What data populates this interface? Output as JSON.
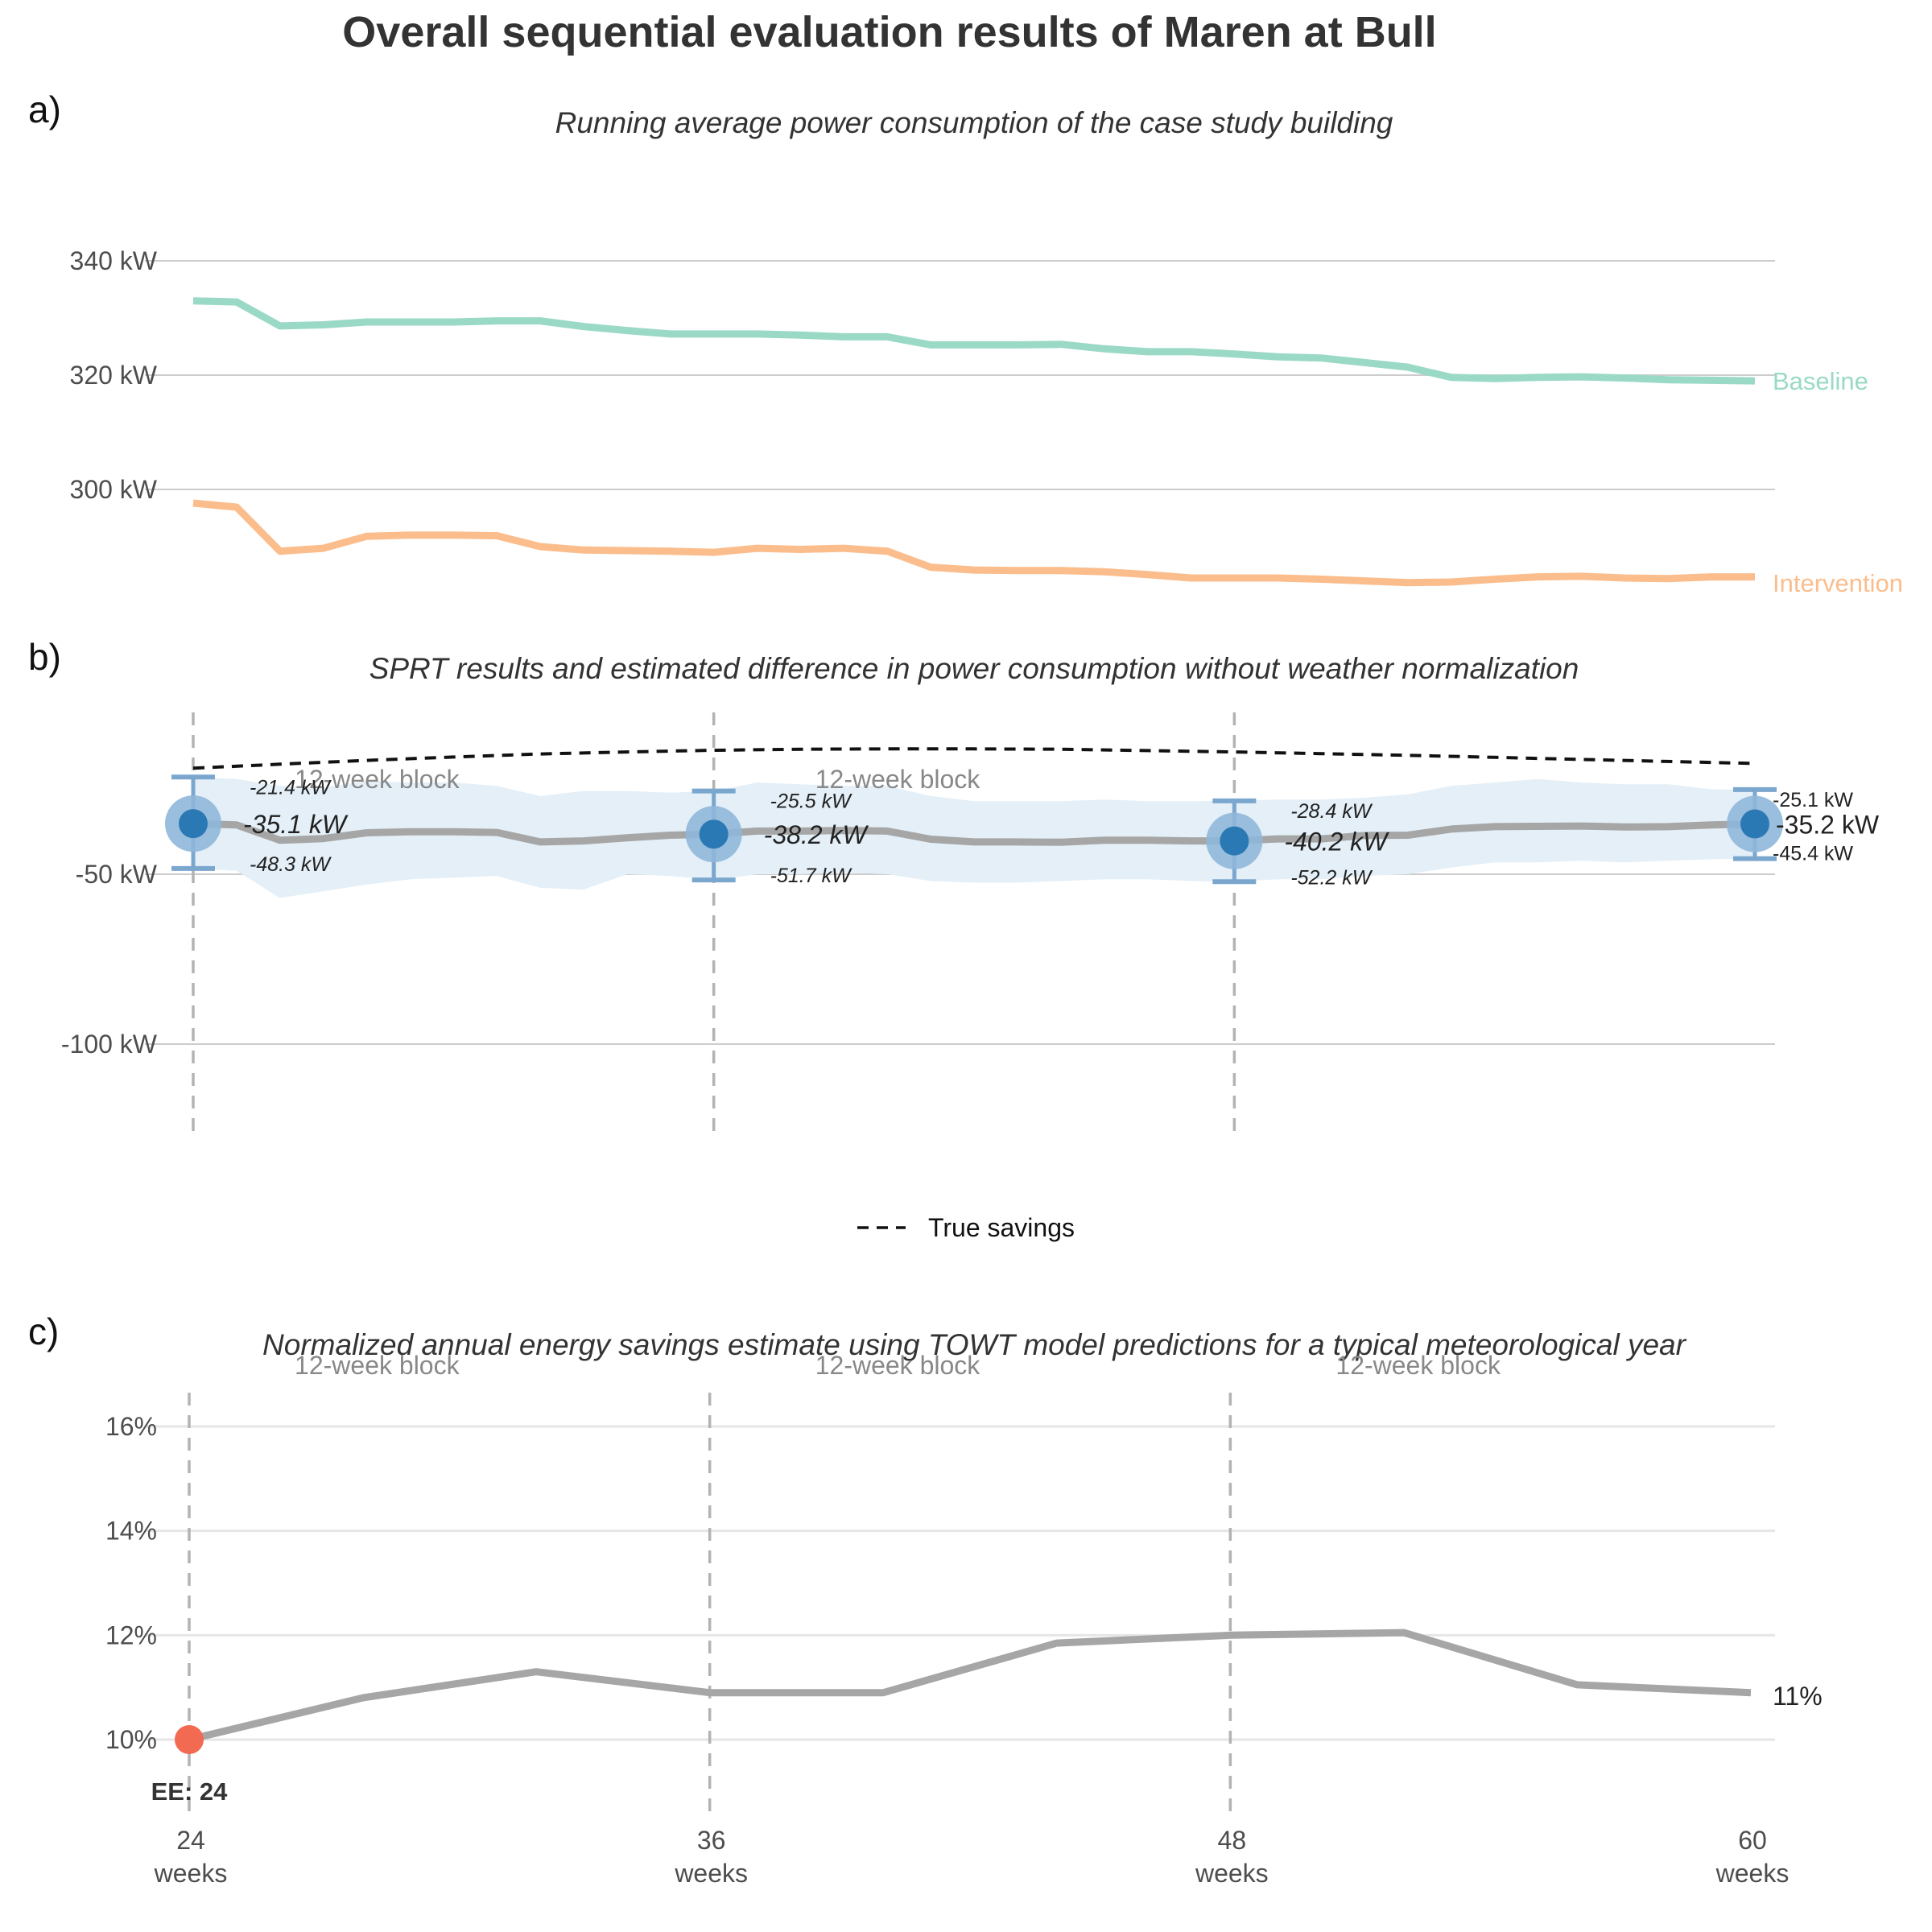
{
  "title": "Overall sequential evaluation results of Maren at Bull",
  "colors": {
    "baseline": "#9ad9c6",
    "intervention": "#fbbd8c",
    "estimate_line": "#a6a6a6",
    "ribbon": "#e4eff7",
    "point": "#2b79b4",
    "point_halo": "#8fb7d9",
    "errorbar": "#7ba7cf",
    "early_end": "#f26a52"
  },
  "x_axis": {
    "ticks": [
      {
        "value": "24",
        "unit": "weeks"
      },
      {
        "value": "36",
        "unit": "weeks"
      },
      {
        "value": "48",
        "unit": "weeks"
      },
      {
        "value": "60",
        "unit": "weeks"
      }
    ]
  },
  "chart_data": [
    {
      "panel": "a)",
      "type": "line",
      "subtitle": "Running average power consumption of the case study building",
      "x_range": [
        24,
        60
      ],
      "ylim": [
        282,
        350
      ],
      "yticks": [
        "300 kW",
        "320 kW",
        "340 kW"
      ],
      "ytick_values": [
        300,
        320,
        340
      ],
      "series": [
        {
          "name": "Baseline",
          "x": [
            24,
            25,
            26,
            27,
            28,
            29,
            30,
            31,
            32,
            33,
            34,
            35,
            36,
            37,
            38,
            39,
            40,
            41,
            42,
            43,
            44,
            45,
            46,
            47,
            48,
            49,
            50,
            51,
            52,
            53,
            54,
            55,
            56,
            57,
            58,
            59,
            60
          ],
          "y": [
            333,
            332.8,
            328.6,
            328.8,
            329.3,
            329.3,
            329.3,
            329.5,
            329.5,
            328.5,
            327.8,
            327.2,
            327.2,
            327.2,
            327,
            326.7,
            326.7,
            325.3,
            325.3,
            325.3,
            325.4,
            324.6,
            324.1,
            324.1,
            323.7,
            323.2,
            323,
            322.2,
            321.4,
            319.6,
            319.4,
            319.6,
            319.7,
            319.5,
            319.2,
            319.1,
            319
          ]
        },
        {
          "name": "Intervention",
          "x": [
            24,
            25,
            26,
            27,
            28,
            29,
            30,
            31,
            32,
            33,
            34,
            35,
            36,
            37,
            38,
            39,
            40,
            41,
            42,
            43,
            44,
            45,
            46,
            47,
            48,
            49,
            50,
            51,
            52,
            53,
            54,
            55,
            56,
            57,
            58,
            59,
            60
          ],
          "y": [
            297.6,
            296.9,
            289.2,
            289.7,
            291.8,
            292.0,
            292.0,
            291.9,
            290.0,
            289.4,
            289.3,
            289.2,
            289.0,
            289.7,
            289.5,
            289.7,
            289.2,
            286.4,
            285.9,
            285.8,
            285.8,
            285.6,
            285.1,
            284.5,
            284.5,
            284.5,
            284.3,
            284.0,
            283.7,
            283.8,
            284.3,
            284.7,
            284.8,
            284.5,
            284.4,
            284.7,
            284.7
          ]
        }
      ]
    },
    {
      "panel": "b)",
      "type": "line",
      "subtitle": "SPRT results and estimated difference in power consumption without weather normalization",
      "x_range": [
        24,
        60
      ],
      "ylim": [
        -126,
        -7
      ],
      "yticks": [
        "-50 kW",
        "-100 kW"
      ],
      "ytick_values": [
        -50,
        -100
      ],
      "block_label": "12-week block",
      "legend": {
        "label": "True savings"
      },
      "true_savings": {
        "x": [
          24,
          26,
          28,
          30,
          32,
          34,
          36,
          38,
          40,
          42,
          44,
          46,
          48,
          50,
          52,
          54,
          56,
          58,
          60
        ],
        "y": [
          -18.8,
          -17.6,
          -16.5,
          -15.5,
          -14.6,
          -14.0,
          -13.5,
          -13.2,
          -13.1,
          -13.1,
          -13.2,
          -13.6,
          -14.0,
          -14.5,
          -15.0,
          -15.6,
          -16.2,
          -16.8,
          -17.4
        ]
      },
      "estimate": {
        "x": [
          24,
          25,
          26,
          27,
          28,
          29,
          30,
          31,
          32,
          33,
          34,
          35,
          36,
          37,
          38,
          39,
          40,
          41,
          42,
          43,
          44,
          45,
          46,
          47,
          48,
          49,
          50,
          51,
          52,
          53,
          54,
          55,
          56,
          57,
          58,
          59,
          60
        ],
        "y": [
          -35.1,
          -35.5,
          -40.0,
          -39.5,
          -37.8,
          -37.5,
          -37.5,
          -37.7,
          -40.5,
          -40.2,
          -39.3,
          -38.5,
          -38.2,
          -37.3,
          -37.3,
          -37.1,
          -37.3,
          -39.7,
          -40.5,
          -40.5,
          -40.6,
          -40.0,
          -40.0,
          -40.2,
          -40.2,
          -39.6,
          -39.6,
          -38.6,
          -38.5,
          -36.7,
          -36.0,
          -35.9,
          -35.8,
          -36.1,
          -36.0,
          -35.5,
          -35.2
        ]
      },
      "ribbon": {
        "x": [
          24,
          25,
          26,
          27,
          28,
          29,
          30,
          31,
          32,
          33,
          34,
          35,
          36,
          37,
          38,
          39,
          40,
          41,
          42,
          43,
          44,
          45,
          46,
          47,
          48,
          49,
          50,
          51,
          52,
          53,
          54,
          55,
          56,
          57,
          58,
          59,
          60
        ],
        "lower": [
          -48.3,
          -49,
          -57,
          -55,
          -53,
          -51.5,
          -51,
          -50.5,
          -54,
          -54.5,
          -50,
          -50.5,
          -51.7,
          -50,
          -50,
          -49.5,
          -50,
          -52,
          -52.5,
          -52.5,
          -52,
          -51.5,
          -51.5,
          -52,
          -52.2,
          -51.5,
          -51.5,
          -50.5,
          -50,
          -48,
          -46.5,
          -46.5,
          -46,
          -46.5,
          -46,
          -45.6,
          -45.4
        ],
        "upper": [
          -21.4,
          -22,
          -24,
          -24.5,
          -22.5,
          -23,
          -23,
          -24,
          -27,
          -25.5,
          -25.5,
          -26,
          -25.5,
          -23,
          -23.5,
          -24,
          -24,
          -27,
          -28.5,
          -28.5,
          -28.5,
          -28,
          -28.5,
          -28.5,
          -28.4,
          -28,
          -28,
          -27.5,
          -26.5,
          -24,
          -23,
          -22,
          -23,
          -23.5,
          -23.5,
          -25,
          -25.1
        ]
      },
      "points": [
        {
          "x": 24,
          "estimate": -35.1,
          "lower": -48.3,
          "upper": -21.4,
          "estimate_label": "-35.1 kW",
          "lower_label": "-48.3 kW",
          "upper_label": "-21.4 kW"
        },
        {
          "x": 36,
          "estimate": -38.2,
          "lower": -51.7,
          "upper": -25.5,
          "estimate_label": "-38.2 kW",
          "lower_label": "-51.7 kW",
          "upper_label": "-25.5 kW"
        },
        {
          "x": 48,
          "estimate": -40.2,
          "lower": -52.2,
          "upper": -28.4,
          "estimate_label": "-40.2 kW",
          "lower_label": "-52.2 kW",
          "upper_label": "-28.4 kW"
        },
        {
          "x": 60,
          "estimate": -35.2,
          "lower": -45.4,
          "upper": -25.1,
          "estimate_label": "-35.2 kW",
          "lower_label": "-45.4 kW",
          "upper_label": "-25.1 kW"
        }
      ]
    },
    {
      "panel": "c)",
      "type": "line",
      "subtitle": "Normalized annual energy savings estimate using TOWT model predictions for a typical meteorological year",
      "x_range": [
        24,
        60
      ],
      "ylim": [
        8.5,
        17
      ],
      "yticks": [
        "10%",
        "12%",
        "14%",
        "16%"
      ],
      "ytick_values": [
        10,
        12,
        14,
        16
      ],
      "block_label": "12-week block",
      "series": [
        {
          "x": [
            24,
            28,
            32,
            36,
            40,
            44,
            48,
            52,
            56,
            60
          ],
          "y": [
            10.0,
            10.8,
            11.3,
            10.9,
            10.9,
            11.85,
            12.0,
            12.05,
            11.05,
            10.9
          ]
        }
      ],
      "end_label": "11%",
      "early_end": {
        "x": 24,
        "y": 10.0,
        "label": "EE: 24"
      }
    }
  ]
}
